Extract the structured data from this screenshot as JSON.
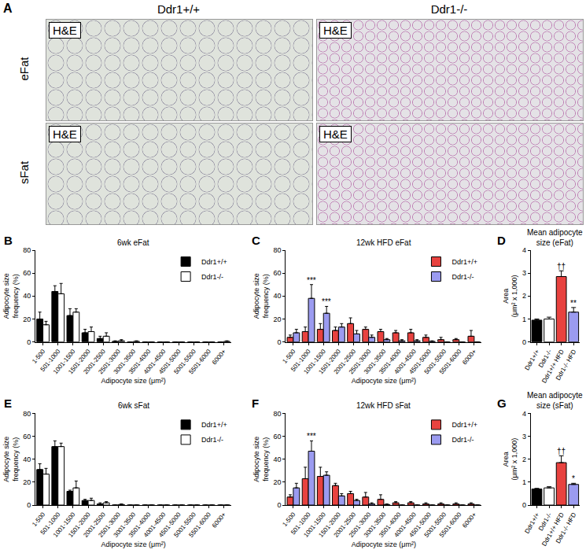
{
  "image_panel": {
    "panel": "A",
    "columns": [
      "Ddr1+/+",
      "Ddr1-/-"
    ],
    "rows": [
      "eFat",
      "sFat"
    ],
    "stain_label": "H&E"
  },
  "chart_data": [
    {
      "panel": "B",
      "type": "bar",
      "title": "6wk eFat",
      "x_label": "Adipocyte size (μm²)",
      "y_label": "Adipocyte size\nfrequency (%)",
      "categories": [
        "1-500",
        "501-1000",
        "1001-1500",
        "1501-2000",
        "2001-2500",
        "2501-3000",
        "3001-3500",
        "3501-4000",
        "4001-4500",
        "4501-5000",
        "5001-5500",
        "5501-6000",
        "6000+"
      ],
      "series": [
        {
          "name": "Ddr1+/+",
          "color": "#000000",
          "values": [
            20,
            44,
            23,
            8,
            3,
            0.5,
            0,
            0,
            0,
            0,
            0,
            0,
            0
          ],
          "errors": [
            6,
            5,
            6,
            3,
            2,
            0.5,
            0,
            0,
            0,
            0,
            0,
            0,
            0
          ]
        },
        {
          "name": "Ddr1-/-",
          "color": "#ffffff",
          "values": [
            15,
            42,
            26,
            9,
            5,
            1,
            0.5,
            0,
            0,
            0,
            0,
            0,
            0.5
          ],
          "errors": [
            3,
            9,
            3,
            4,
            3,
            1,
            0.5,
            0,
            0,
            0,
            0,
            0,
            0.5
          ]
        }
      ],
      "ylim": [
        0,
        80
      ],
      "yticks": [
        0,
        20,
        40,
        60,
        80
      ],
      "legend": "upper right",
      "annotations": []
    },
    {
      "panel": "C",
      "type": "bar",
      "title": "12wk HFD eFat",
      "x_label": "Adipocyte size (μm²)",
      "y_label": "Adipocyte size\nfrequency (%)",
      "categories": [
        "1-500",
        "501-1000",
        "1001-1500",
        "1501-2000",
        "2001-2500",
        "2501-3000",
        "3001-3500",
        "3501-4000",
        "4001-4500",
        "4501-5000",
        "5001-5500",
        "5501-6000",
        "6000+"
      ],
      "series": [
        {
          "name": "Ddr1+/+",
          "color": "#e8423f",
          "values": [
            4,
            9,
            11,
            10,
            16,
            11,
            9,
            8,
            8,
            4,
            2,
            2,
            5
          ],
          "errors": [
            2,
            4,
            5,
            3,
            5,
            2,
            2,
            2,
            3,
            2,
            2,
            1,
            5
          ]
        },
        {
          "name": "Ddr1-/-",
          "color": "#9b9bf0",
          "values": [
            8,
            38,
            25,
            13,
            7,
            4,
            2,
            1,
            1,
            0.5,
            0,
            0,
            0
          ],
          "errors": [
            3,
            12,
            6,
            3,
            3,
            2,
            1,
            1,
            1,
            0.5,
            0,
            0,
            0
          ]
        }
      ],
      "ylim": [
        0,
        80
      ],
      "yticks": [
        0,
        20,
        40,
        60,
        80
      ],
      "legend": "upper right",
      "annotations": [
        {
          "text": "***",
          "category": "501-1000",
          "series": "Ddr1-/-"
        },
        {
          "text": "***",
          "category": "1001-1500",
          "series": "Ddr1-/-"
        }
      ]
    },
    {
      "panel": "D",
      "type": "bar",
      "title": "Mean adipocyte\nsize (eFat)",
      "y_label": "Area\n(μm² x 1,000)",
      "categories": [
        "Ddr1+/+",
        "Ddr1-/-",
        "Ddr1+/+ HFD",
        "Ddr1-/- HFD"
      ],
      "values": [
        0.95,
        1.0,
        2.85,
        1.3
      ],
      "errors": [
        0.05,
        0.08,
        0.25,
        0.2
      ],
      "colors": [
        "#000000",
        "#ffffff",
        "#e8423f",
        "#9b9bf0"
      ],
      "ylim": [
        0,
        4
      ],
      "yticks": [
        0,
        1,
        2,
        3,
        4
      ],
      "annotations": [
        {
          "text": "††",
          "category": "Ddr1+/+ HFD"
        },
        {
          "text": "**",
          "category": "Ddr1-/- HFD"
        }
      ]
    },
    {
      "panel": "E",
      "type": "bar",
      "title": "6wk sFat",
      "x_label": "Adipocyte size (μm²)",
      "y_label": "Adipocyte size\nfrequency (%)",
      "categories": [
        "1-500",
        "501-1000",
        "1001-1500",
        "1501-2000",
        "2001-2500",
        "2501-3000",
        "3001-3500",
        "3501-4000",
        "4001-4500",
        "4501-5000",
        "5001-5500",
        "5501-6000",
        "6000+"
      ],
      "series": [
        {
          "name": "Ddr1+/+",
          "color": "#000000",
          "values": [
            31,
            51,
            12,
            4,
            1,
            0,
            0,
            0,
            0,
            0,
            0,
            0,
            0
          ],
          "errors": [
            5,
            5,
            1,
            1,
            1,
            0,
            0,
            0,
            0,
            0,
            0,
            0,
            0
          ]
        },
        {
          "name": "Ddr1-/-",
          "color": "#ffffff",
          "values": [
            27,
            51,
            15,
            4,
            2,
            0.5,
            0,
            0,
            0,
            0,
            0,
            0,
            0
          ],
          "errors": [
            5,
            3,
            6,
            2,
            1,
            0.5,
            0,
            0,
            0,
            0,
            0,
            0,
            0
          ]
        }
      ],
      "ylim": [
        0,
        80
      ],
      "yticks": [
        0,
        20,
        40,
        60,
        80
      ],
      "legend": "upper right",
      "annotations": []
    },
    {
      "panel": "F",
      "type": "bar",
      "title": "12wk HFD sFat",
      "x_label": "Adipocyte size (μm²)",
      "y_label": "Adipocyte size\nfrequency (%)",
      "categories": [
        "1-500",
        "501-1000",
        "1001-1500",
        "1501-2000",
        "2001-2500",
        "2501-3000",
        "3001-3500",
        "3501-4000",
        "4001-4500",
        "4501-5000",
        "5001-5500",
        "5501-6000",
        "6000+"
      ],
      "series": [
        {
          "name": "Ddr1+/+",
          "color": "#e8423f",
          "values": [
            7,
            23,
            25,
            17,
            10,
            7,
            5,
            2,
            2,
            1,
            1,
            1,
            1
          ],
          "errors": [
            2,
            10,
            8,
            2,
            2,
            4,
            4,
            1,
            1,
            1,
            1,
            1,
            1
          ]
        },
        {
          "name": "Ddr1-/-",
          "color": "#9b9bf0",
          "values": [
            15,
            47,
            26,
            8,
            4,
            1,
            0.5,
            0,
            0,
            0,
            0,
            0,
            0
          ],
          "errors": [
            4,
            9,
            3,
            2,
            1,
            1,
            0.5,
            0,
            0,
            0,
            0,
            0,
            0
          ]
        }
      ],
      "ylim": [
        0,
        80
      ],
      "yticks": [
        0,
        20,
        40,
        60,
        80
      ],
      "legend": "upper right",
      "annotations": [
        {
          "text": "***",
          "category": "501-1000",
          "series": "Ddr1-/-"
        }
      ]
    },
    {
      "panel": "G",
      "type": "bar",
      "title": "Mean adipocyte\nsize (sFat)",
      "y_label": "Area\n(μm² x 1,000)",
      "categories": [
        "Ddr1+/+",
        "Ddr1-/-",
        "Ddr1+/+ HFD",
        "Ddr1-/- HFD"
      ],
      "values": [
        0.7,
        0.75,
        1.85,
        0.9
      ],
      "errors": [
        0.03,
        0.05,
        0.3,
        0.05
      ],
      "colors": [
        "#000000",
        "#ffffff",
        "#e8423f",
        "#9b9bf0"
      ],
      "ylim": [
        0,
        4
      ],
      "yticks": [
        0,
        1,
        2,
        3,
        4
      ],
      "annotations": [
        {
          "text": "††",
          "category": "Ddr1+/+ HFD"
        },
        {
          "text": "*",
          "category": "Ddr1-/- HFD"
        }
      ]
    }
  ]
}
